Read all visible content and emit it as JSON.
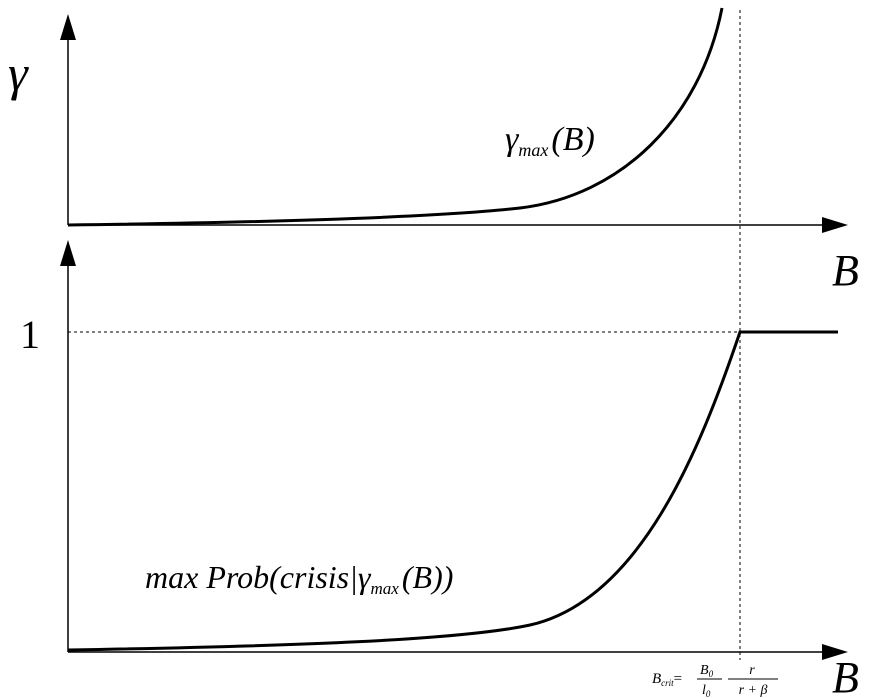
{
  "top_panel": {
    "y_axis_label": "γ",
    "x_axis_label": "B",
    "curve_label": {
      "symbol": "γ",
      "subscript": "max",
      "argument": "(B)"
    }
  },
  "bottom_panel": {
    "y_tick_label": "1",
    "x_axis_label": "B",
    "curve_label": {
      "prefix": "max Prob(crisis|",
      "symbol": "γ",
      "subscript": "max",
      "suffix": "(B))"
    },
    "x_marker_label": {
      "lhs": "B",
      "lhs_subscript": "crit",
      "equals": "=",
      "frac1_num": "B",
      "frac1_num_sub": "0",
      "frac1_den": "l",
      "frac1_den_sub": "0",
      "frac2_num": "r",
      "frac2_den": "r + β"
    }
  }
}
